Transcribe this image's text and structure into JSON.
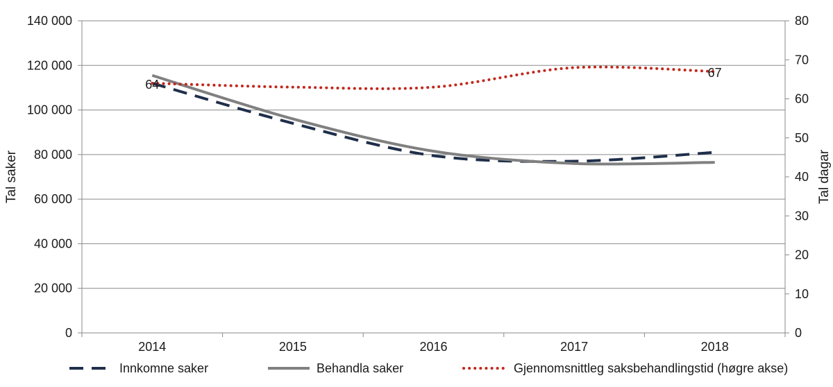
{
  "chart_data": {
    "type": "line",
    "categories": [
      "2014",
      "2015",
      "2016",
      "2017",
      "2018"
    ],
    "ylabel": "Tal saker",
    "y2label": "Tal dagar",
    "ylim": [
      0,
      140000
    ],
    "y2lim": [
      0,
      80
    ],
    "y_ticks": [
      0,
      20000,
      40000,
      60000,
      80000,
      100000,
      120000,
      140000
    ],
    "y_tick_labels": [
      "0",
      "20 000",
      "40 000",
      "60 000",
      "80 000",
      "100 000",
      "120 000",
      "140 000"
    ],
    "y2_ticks": [
      0,
      10,
      20,
      30,
      40,
      50,
      60,
      70,
      80
    ],
    "grid": true,
    "legend_position": "bottom",
    "series": [
      {
        "name": "Innkomne saker",
        "axis": "left",
        "style": "dashed",
        "color": "#1f2f4a",
        "values": [
          112000,
          94000,
          79500,
          77000,
          81000
        ]
      },
      {
        "name": "Behandla saker",
        "axis": "left",
        "style": "solid",
        "color": "#808080",
        "values": [
          115500,
          96000,
          81500,
          76000,
          76500
        ]
      },
      {
        "name": "Gjennomsnittleg saksbehandlingstid (høgre akse)",
        "axis": "right",
        "style": "dotted",
        "color": "#c0281d",
        "values": [
          64,
          63,
          63,
          68,
          67
        ]
      }
    ],
    "data_labels": [
      {
        "series": 2,
        "index": 0,
        "text": "64"
      },
      {
        "series": 2,
        "index": 4,
        "text": "67"
      }
    ]
  }
}
